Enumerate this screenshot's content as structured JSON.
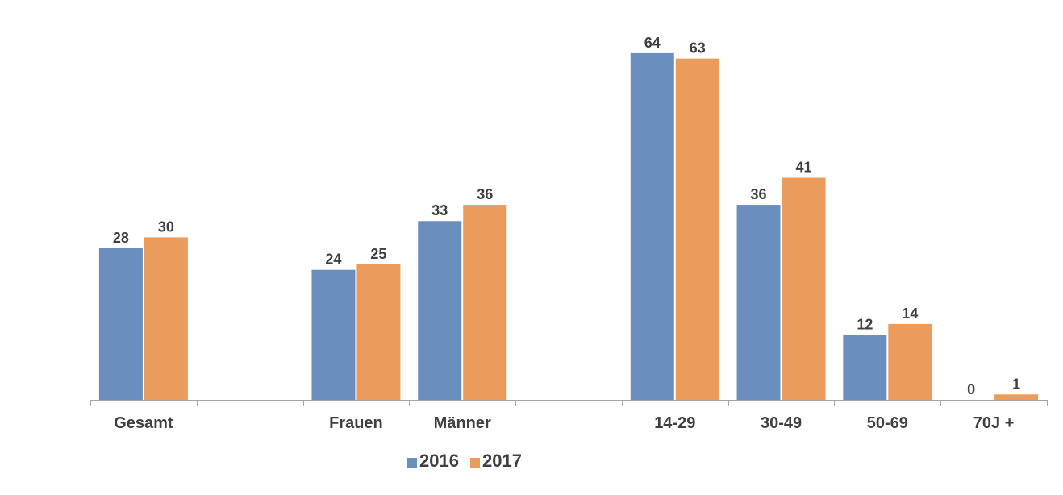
{
  "chart_data": {
    "type": "bar",
    "categories": [
      "Gesamt",
      "",
      "Frauen",
      "Männer",
      "",
      "14-29",
      "30-49",
      "50-69",
      "70J +"
    ],
    "series": [
      {
        "name": "2016",
        "color": "#6a8fbf",
        "values": [
          28,
          null,
          24,
          33,
          null,
          64,
          36,
          12,
          0
        ]
      },
      {
        "name": "2017",
        "color": "#eb9b5b",
        "values": [
          30,
          null,
          25,
          36,
          null,
          63,
          41,
          14,
          1
        ]
      }
    ],
    "ylim": [
      0,
      64
    ],
    "grid": false,
    "legend": "bottom-center",
    "axis_color": "#a6a6a6",
    "text_color": "#404040"
  }
}
